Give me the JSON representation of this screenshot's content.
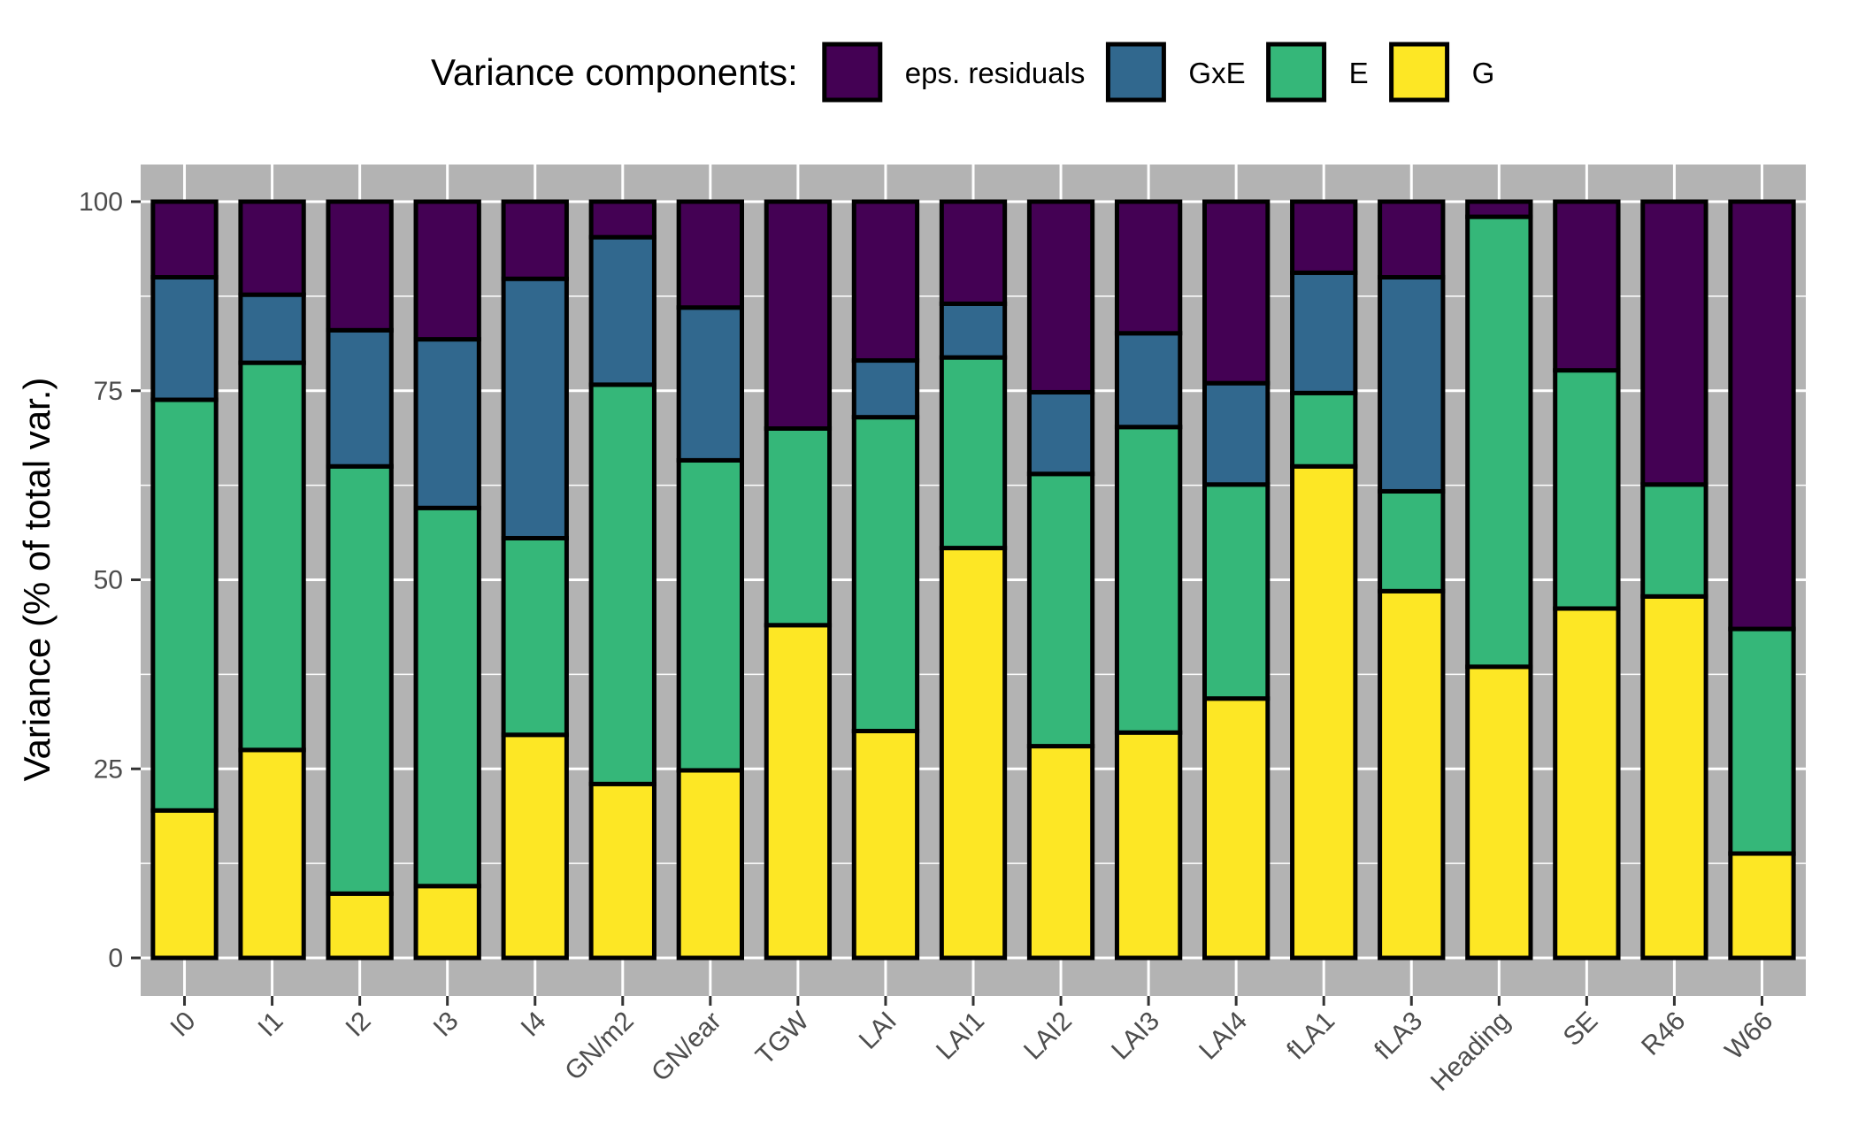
{
  "chart_data": {
    "type": "bar",
    "stacked": true,
    "categories": [
      "I0",
      "I1",
      "I2",
      "I3",
      "I4",
      "GN/m2",
      "GN/ear",
      "TGW",
      "LAI",
      "LAI1",
      "LAI2",
      "LAI3",
      "LAI4",
      "fLA1",
      "fLA3",
      "Heading",
      "SE",
      "R46",
      "W66"
    ],
    "series": [
      {
        "name": "G",
        "color": "#fde725",
        "values": [
          19.5,
          27.5,
          8.5,
          9.5,
          29.5,
          23.0,
          24.8,
          44.0,
          30.0,
          54.2,
          28.0,
          29.8,
          34.3,
          65.0,
          48.5,
          38.5,
          46.2,
          47.8,
          13.8
        ]
      },
      {
        "name": "E",
        "color": "#35b779",
        "values": [
          54.3,
          51.2,
          56.5,
          50.0,
          26.0,
          52.8,
          41.0,
          26.0,
          41.5,
          25.2,
          36.0,
          40.4,
          28.3,
          9.7,
          13.2,
          59.5,
          31.5,
          14.8,
          29.7
        ]
      },
      {
        "name": "GxE",
        "color": "#31688e",
        "values": [
          16.2,
          9.0,
          18.0,
          22.3,
          34.3,
          19.5,
          20.2,
          0,
          7.5,
          7.1,
          10.8,
          12.4,
          13.4,
          15.9,
          28.3,
          0,
          0,
          0,
          0
        ]
      },
      {
        "name": "eps. residuals",
        "color": "#440154",
        "values": [
          10.0,
          12.3,
          17.0,
          18.2,
          10.2,
          4.7,
          14.0,
          30.0,
          21.0,
          13.5,
          25.2,
          17.4,
          24.0,
          9.4,
          10.0,
          2.0,
          22.3,
          37.4,
          56.5
        ]
      }
    ],
    "ylabel": "Variance (% of total var.)",
    "xlabel": "",
    "ylim": [
      0,
      100
    ],
    "yticks": [
      0,
      25,
      50,
      75,
      100
    ],
    "grid": true,
    "legend": {
      "title": "Variance components:",
      "position": "top",
      "entries": [
        "eps. residuals",
        "GxE",
        "E",
        "G"
      ]
    },
    "panel_color": "#b3b3b3",
    "grid_color": "#ffffff"
  }
}
